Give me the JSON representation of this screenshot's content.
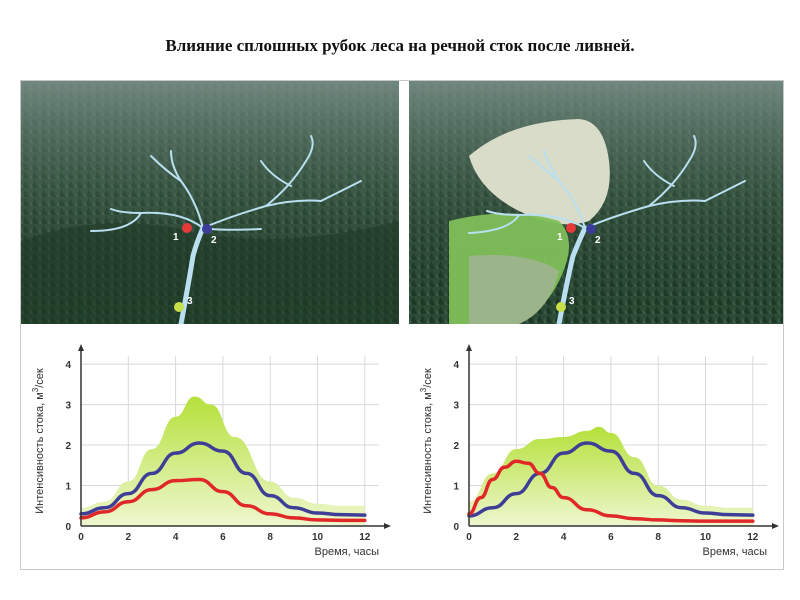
{
  "title": "Влияние сплошных рубок леса на речной сток после ливней.",
  "photos": {
    "markers": [
      "1",
      "2",
      "3"
    ],
    "marker_colors": [
      "#e53a3a",
      "#3b3b9a",
      "#c8e04a"
    ]
  },
  "colors": {
    "band": "#b5e03a",
    "red": "#e02828",
    "blue": "#3e3e96",
    "axis": "#333333"
  },
  "chart_data": [
    {
      "type": "line",
      "xlabel": "Время, часы",
      "ylabel": "Интенсивность стока, м³/сек",
      "ylabel_prefix": "Интенсивность стока, м",
      "ylabel_sup": "3",
      "ylabel_suffix": "/сек",
      "xlim": [
        0,
        12.6
      ],
      "ylim": [
        0,
        4.2
      ],
      "xticks": [
        0,
        2,
        4,
        6,
        8,
        10,
        12
      ],
      "yticks": [
        0,
        1,
        2,
        3,
        4
      ],
      "series": [
        {
          "color": "#b5e03a",
          "kind": "area",
          "x": [
            0,
            1,
            2,
            3,
            4,
            4.8,
            5.5,
            6.5,
            8,
            9,
            10,
            11,
            12
          ],
          "y": [
            0.45,
            0.6,
            1.1,
            1.9,
            2.7,
            3.2,
            3.0,
            2.2,
            1.1,
            0.7,
            0.55,
            0.5,
            0.5
          ]
        },
        {
          "color": "#3e3e96",
          "kind": "line",
          "x": [
            0,
            1,
            2,
            3,
            4,
            5,
            6,
            7,
            8,
            9,
            10,
            11,
            12
          ],
          "y": [
            0.3,
            0.45,
            0.8,
            1.3,
            1.8,
            2.05,
            1.85,
            1.3,
            0.75,
            0.45,
            0.32,
            0.28,
            0.27
          ]
        },
        {
          "color": "#e02828",
          "kind": "line",
          "x": [
            0,
            1,
            2,
            3,
            4,
            5,
            6,
            7,
            8,
            9,
            10,
            11,
            12
          ],
          "y": [
            0.2,
            0.35,
            0.6,
            0.9,
            1.12,
            1.15,
            0.85,
            0.5,
            0.3,
            0.2,
            0.15,
            0.14,
            0.14
          ]
        }
      ]
    },
    {
      "type": "line",
      "xlabel": "Время, часы",
      "ylabel": "Интенсивность стока, м³/сек",
      "ylabel_prefix": "Интенсивность стока, м",
      "ylabel_sup": "3",
      "ylabel_suffix": "/сек",
      "xlim": [
        0,
        12.6
      ],
      "ylim": [
        0,
        4.2
      ],
      "xticks": [
        0,
        2,
        4,
        6,
        8,
        10,
        12
      ],
      "yticks": [
        0,
        1,
        2,
        3,
        4
      ],
      "series": [
        {
          "color": "#b5e03a",
          "kind": "area",
          "x": [
            0,
            1,
            2,
            3,
            4,
            5,
            5.5,
            6,
            7,
            8,
            9,
            10,
            11,
            12
          ],
          "y": [
            0.6,
            1.3,
            1.9,
            2.15,
            2.2,
            2.35,
            2.45,
            2.3,
            1.7,
            1.0,
            0.65,
            0.5,
            0.45,
            0.45
          ]
        },
        {
          "color": "#3e3e96",
          "kind": "line",
          "x": [
            0,
            1,
            2,
            3,
            4,
            5,
            6,
            7,
            8,
            9,
            10,
            11,
            12
          ],
          "y": [
            0.25,
            0.45,
            0.8,
            1.3,
            1.8,
            2.05,
            1.85,
            1.3,
            0.75,
            0.45,
            0.32,
            0.28,
            0.27
          ]
        },
        {
          "color": "#e02828",
          "kind": "line",
          "x": [
            0,
            0.5,
            1,
            1.5,
            2,
            2.5,
            3,
            3.5,
            4,
            5,
            6,
            7,
            8,
            9,
            10,
            12
          ],
          "y": [
            0.3,
            0.7,
            1.15,
            1.45,
            1.6,
            1.55,
            1.3,
            0.95,
            0.7,
            0.4,
            0.25,
            0.18,
            0.15,
            0.13,
            0.12,
            0.12
          ]
        }
      ]
    }
  ]
}
